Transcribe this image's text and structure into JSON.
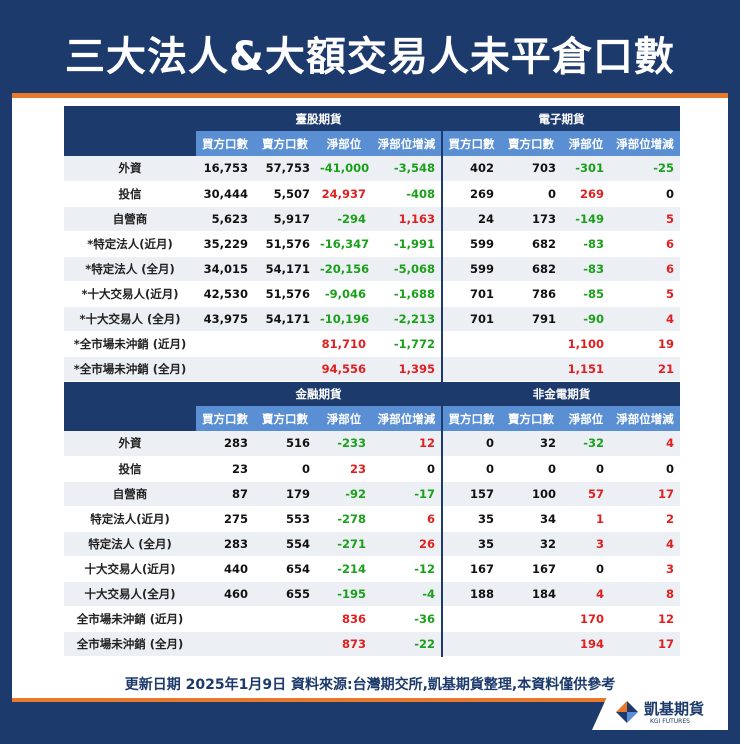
{
  "title": "三大法人&大額交易人未平倉口數",
  "section1": {
    "left_title": "臺股期貨",
    "right_title": "電子期貨",
    "columns": [
      "買方口數",
      "賣方口數",
      "淨部位",
      "淨部位增減",
      "買方口數",
      "賣方口數",
      "淨部位",
      "淨部位增減"
    ],
    "rows": [
      {
        "label": "外資",
        "cells": [
          [
            "16,753",
            "neu"
          ],
          [
            "57,753",
            "neu"
          ],
          [
            "-41,000",
            "neg"
          ],
          [
            "-3,548",
            "neg"
          ],
          [
            "402",
            "neu"
          ],
          [
            "703",
            "neu"
          ],
          [
            "-301",
            "neg"
          ],
          [
            "-25",
            "neg"
          ]
        ]
      },
      {
        "label": "投信",
        "cells": [
          [
            "30,444",
            "neu"
          ],
          [
            "5,507",
            "neu"
          ],
          [
            "24,937",
            "pos"
          ],
          [
            "-408",
            "neg"
          ],
          [
            "269",
            "neu"
          ],
          [
            "0",
            "neu"
          ],
          [
            "269",
            "pos"
          ],
          [
            "0",
            "neu"
          ]
        ]
      },
      {
        "label": "自營商",
        "cells": [
          [
            "5,623",
            "neu"
          ],
          [
            "5,917",
            "neu"
          ],
          [
            "-294",
            "neg"
          ],
          [
            "1,163",
            "pos"
          ],
          [
            "24",
            "neu"
          ],
          [
            "173",
            "neu"
          ],
          [
            "-149",
            "neg"
          ],
          [
            "5",
            "pos"
          ]
        ]
      },
      {
        "label": "*特定法人(近月)",
        "cells": [
          [
            "35,229",
            "neu"
          ],
          [
            "51,576",
            "neu"
          ],
          [
            "-16,347",
            "neg"
          ],
          [
            "-1,991",
            "neg"
          ],
          [
            "599",
            "neu"
          ],
          [
            "682",
            "neu"
          ],
          [
            "-83",
            "neg"
          ],
          [
            "6",
            "pos"
          ]
        ]
      },
      {
        "label": "*特定法人 (全月)",
        "cells": [
          [
            "34,015",
            "neu"
          ],
          [
            "54,171",
            "neu"
          ],
          [
            "-20,156",
            "neg"
          ],
          [
            "-5,068",
            "neg"
          ],
          [
            "599",
            "neu"
          ],
          [
            "682",
            "neu"
          ],
          [
            "-83",
            "neg"
          ],
          [
            "6",
            "pos"
          ]
        ]
      },
      {
        "label": "*十大交易人(近月)",
        "cells": [
          [
            "42,530",
            "neu"
          ],
          [
            "51,576",
            "neu"
          ],
          [
            "-9,046",
            "neg"
          ],
          [
            "-1,688",
            "neg"
          ],
          [
            "701",
            "neu"
          ],
          [
            "786",
            "neu"
          ],
          [
            "-85",
            "neg"
          ],
          [
            "5",
            "pos"
          ]
        ]
      },
      {
        "label": "*十大交易人 (全月)",
        "cells": [
          [
            "43,975",
            "neu"
          ],
          [
            "54,171",
            "neu"
          ],
          [
            "-10,196",
            "neg"
          ],
          [
            "-2,213",
            "neg"
          ],
          [
            "701",
            "neu"
          ],
          [
            "791",
            "neu"
          ],
          [
            "-90",
            "neg"
          ],
          [
            "4",
            "pos"
          ]
        ]
      },
      {
        "label": "*全市場未沖銷 (近月)",
        "cells": [
          [
            "",
            "neu"
          ],
          [
            "",
            "neu"
          ],
          [
            "81,710",
            "pos"
          ],
          [
            "-1,772",
            "neg"
          ],
          [
            "",
            "neu"
          ],
          [
            "",
            "neu"
          ],
          [
            "1,100",
            "pos"
          ],
          [
            "19",
            "pos"
          ]
        ]
      },
      {
        "label": "*全市場未沖銷 (全月)",
        "cells": [
          [
            "",
            "neu"
          ],
          [
            "",
            "neu"
          ],
          [
            "94,556",
            "pos"
          ],
          [
            "1,395",
            "pos"
          ],
          [
            "",
            "neu"
          ],
          [
            "",
            "neu"
          ],
          [
            "1,151",
            "pos"
          ],
          [
            "21",
            "pos"
          ]
        ]
      }
    ]
  },
  "section2": {
    "left_title": "金融期貨",
    "right_title": "非金電期貨",
    "columns": [
      "買方口數",
      "賣方口數",
      "淨部位",
      "淨部位增減",
      "買方口數",
      "賣方口數",
      "淨部位",
      "淨部位增減"
    ],
    "rows": [
      {
        "label": "外資",
        "cells": [
          [
            "283",
            "neu"
          ],
          [
            "516",
            "neu"
          ],
          [
            "-233",
            "neg"
          ],
          [
            "12",
            "pos"
          ],
          [
            "0",
            "neu"
          ],
          [
            "32",
            "neu"
          ],
          [
            "-32",
            "neg"
          ],
          [
            "4",
            "pos"
          ]
        ]
      },
      {
        "label": "投信",
        "cells": [
          [
            "23",
            "neu"
          ],
          [
            "0",
            "neu"
          ],
          [
            "23",
            "pos"
          ],
          [
            "0",
            "neu"
          ],
          [
            "0",
            "neu"
          ],
          [
            "0",
            "neu"
          ],
          [
            "0",
            "neu"
          ],
          [
            "0",
            "neu"
          ]
        ]
      },
      {
        "label": "自營商",
        "cells": [
          [
            "87",
            "neu"
          ],
          [
            "179",
            "neu"
          ],
          [
            "-92",
            "neg"
          ],
          [
            "-17",
            "neg"
          ],
          [
            "157",
            "neu"
          ],
          [
            "100",
            "neu"
          ],
          [
            "57",
            "pos"
          ],
          [
            "17",
            "pos"
          ]
        ]
      },
      {
        "label": "特定法人(近月)",
        "cells": [
          [
            "275",
            "neu"
          ],
          [
            "553",
            "neu"
          ],
          [
            "-278",
            "neg"
          ],
          [
            "6",
            "pos"
          ],
          [
            "35",
            "neu"
          ],
          [
            "34",
            "neu"
          ],
          [
            "1",
            "pos"
          ],
          [
            "2",
            "pos"
          ]
        ]
      },
      {
        "label": "特定法人 (全月)",
        "cells": [
          [
            "283",
            "neu"
          ],
          [
            "554",
            "neu"
          ],
          [
            "-271",
            "neg"
          ],
          [
            "26",
            "pos"
          ],
          [
            "35",
            "neu"
          ],
          [
            "32",
            "neu"
          ],
          [
            "3",
            "pos"
          ],
          [
            "4",
            "pos"
          ]
        ]
      },
      {
        "label": "十大交易人(近月)",
        "cells": [
          [
            "440",
            "neu"
          ],
          [
            "654",
            "neu"
          ],
          [
            "-214",
            "neg"
          ],
          [
            "-12",
            "neg"
          ],
          [
            "167",
            "neu"
          ],
          [
            "167",
            "neu"
          ],
          [
            "0",
            "neu"
          ],
          [
            "3",
            "pos"
          ]
        ]
      },
      {
        "label": "十大交易人(全月)",
        "cells": [
          [
            "460",
            "neu"
          ],
          [
            "655",
            "neu"
          ],
          [
            "-195",
            "neg"
          ],
          [
            "-4",
            "neg"
          ],
          [
            "188",
            "neu"
          ],
          [
            "184",
            "neu"
          ],
          [
            "4",
            "pos"
          ],
          [
            "8",
            "pos"
          ]
        ]
      },
      {
        "label": "全市場未沖銷 (近月)",
        "cells": [
          [
            "",
            "neu"
          ],
          [
            "",
            "neu"
          ],
          [
            "836",
            "pos"
          ],
          [
            "-36",
            "neg"
          ],
          [
            "",
            "neu"
          ],
          [
            "",
            "neu"
          ],
          [
            "170",
            "pos"
          ],
          [
            "12",
            "pos"
          ]
        ]
      },
      {
        "label": "全市場未沖銷 (全月)",
        "cells": [
          [
            "",
            "neu"
          ],
          [
            "",
            "neu"
          ],
          [
            "873",
            "pos"
          ],
          [
            "-22",
            "neg"
          ],
          [
            "",
            "neu"
          ],
          [
            "",
            "neu"
          ],
          [
            "194",
            "pos"
          ],
          [
            "17",
            "pos"
          ]
        ]
      }
    ]
  },
  "footer": "更新日期  2025年1月9日 資料來源:台灣期交所,凱基期貨整理,本資料僅供參考",
  "logo": {
    "name_cn": "凱基期貨",
    "name_en": "KGI FUTURES",
    "icon": "kgi-logo-icon"
  },
  "colors": {
    "navy": "#1c3a6b",
    "accent": "#e8782c",
    "header_blue": "#5a8fd4",
    "positive": "#e02020",
    "negative": "#1aa01a"
  }
}
